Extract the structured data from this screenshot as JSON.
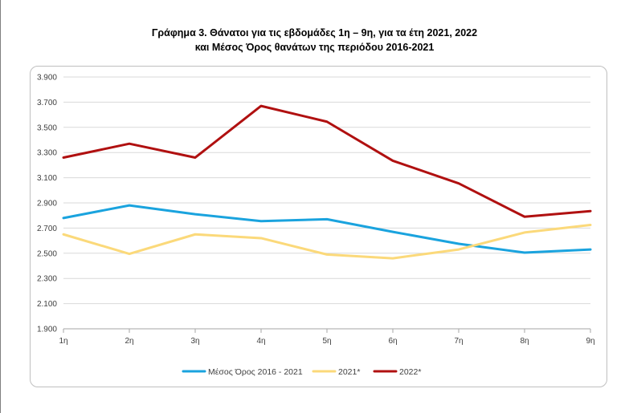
{
  "title_line1": "Γράφημα 3. Θάνατοι για τις εβδομάδες 1η – 9η, για τα έτη 2021, 2022",
  "title_line2": "και Μέσος Όρος θανάτων της περιόδου 2016-2021",
  "chart_data": {
    "type": "line",
    "title": "Γράφημα 3. Θάνατοι για τις εβδομάδες 1η – 9η, για τα έτη 2021, 2022 και Μέσος Όρος θανάτων της περιόδου 2016-2021",
    "categories": [
      "1η",
      "2η",
      "3η",
      "4η",
      "5η",
      "6η",
      "7η",
      "8η",
      "9η"
    ],
    "ylim": [
      1900,
      3900
    ],
    "yticks": [
      1900,
      2100,
      2300,
      2500,
      2700,
      2900,
      3100,
      3300,
      3500,
      3700,
      3900
    ],
    "ytick_labels": [
      "1.900",
      "2.100",
      "2.300",
      "2.500",
      "2.700",
      "2.900",
      "3.100",
      "3.300",
      "3.500",
      "3.700",
      "3.900"
    ],
    "grid": true,
    "legend_position": "bottom",
    "series": [
      {
        "name": "Μέσος Όρος 2016 - 2021",
        "color": "#1aa3de",
        "values": [
          2780,
          2880,
          2810,
          2755,
          2770,
          2670,
          2575,
          2505,
          2530
        ]
      },
      {
        "name": "2021*",
        "color": "#fbd97a",
        "values": [
          2650,
          2495,
          2650,
          2620,
          2490,
          2460,
          2530,
          2665,
          2725
        ]
      },
      {
        "name": "2022*",
        "color": "#b01010",
        "values": [
          3260,
          3370,
          3260,
          3670,
          3545,
          3235,
          3055,
          2790,
          2835
        ]
      }
    ]
  }
}
